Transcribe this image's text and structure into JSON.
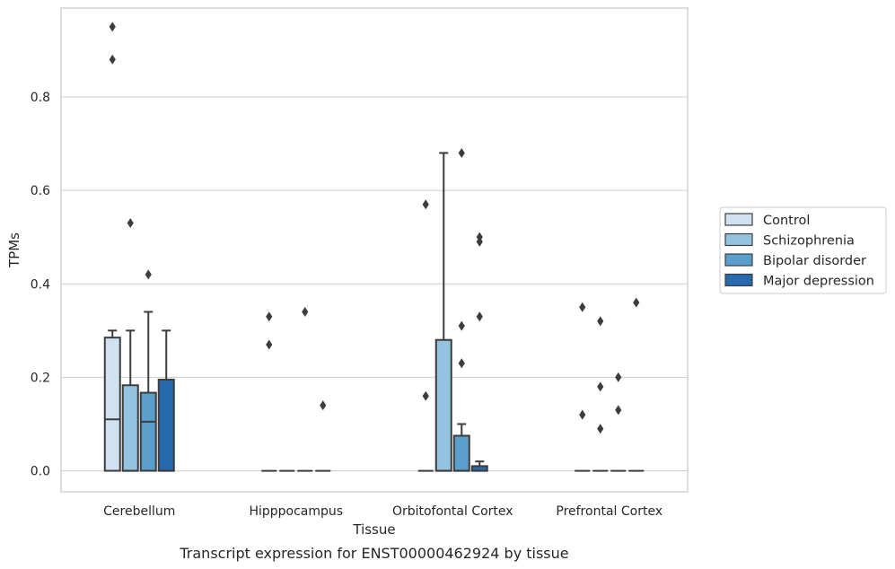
{
  "chart_data": {
    "type": "box",
    "title": "",
    "caption": "Transcript expression for ENST00000462924 by tissue",
    "xlabel": "Tissue",
    "ylabel": "TPMs",
    "ylim": [
      -0.045,
      0.99
    ],
    "yticks": [
      0.0,
      0.2,
      0.4,
      0.6,
      0.8
    ],
    "ytick_labels": [
      "0.0",
      "0.2",
      "0.4",
      "0.6",
      "0.8"
    ],
    "grid": "horizontal",
    "legend_position": "right",
    "categories": [
      "Cerebellum",
      "Hipppocampus",
      "Orbitofontal Cortex",
      "Prefrontal Cortex"
    ],
    "series": [
      {
        "name": "Control",
        "color": "#d0e1f1",
        "boxes": [
          {
            "q1": 0.0,
            "median": 0.11,
            "q3": 0.285,
            "whisker_low": 0.0,
            "whisker_high": 0.3,
            "outliers": [
              0.88,
              0.95
            ]
          },
          {
            "q1": 0.0,
            "median": 0.0,
            "q3": 0.0,
            "whisker_low": 0.0,
            "whisker_high": 0.0,
            "outliers": [
              0.27,
              0.33
            ]
          },
          {
            "q1": 0.0,
            "median": 0.0,
            "q3": 0.0,
            "whisker_low": 0.0,
            "whisker_high": 0.0,
            "outliers": [
              0.16,
              0.57
            ]
          },
          {
            "q1": 0.0,
            "median": 0.0,
            "q3": 0.0,
            "whisker_low": 0.0,
            "whisker_high": 0.0,
            "outliers": [
              0.12,
              0.35
            ]
          }
        ]
      },
      {
        "name": "Schizophrenia",
        "color": "#94c3df",
        "boxes": [
          {
            "q1": 0.0,
            "median": 0.0,
            "q3": 0.183,
            "whisker_low": 0.0,
            "whisker_high": 0.3,
            "outliers": [
              0.53
            ]
          },
          {
            "q1": 0.0,
            "median": 0.0,
            "q3": 0.0,
            "whisker_low": 0.0,
            "whisker_high": 0.0,
            "outliers": []
          },
          {
            "q1": 0.0,
            "median": 0.0,
            "q3": 0.28,
            "whisker_low": 0.0,
            "whisker_high": 0.68,
            "outliers": []
          },
          {
            "q1": 0.0,
            "median": 0.0,
            "q3": 0.0,
            "whisker_low": 0.0,
            "whisker_high": 0.0,
            "outliers": [
              0.09,
              0.18,
              0.32
            ]
          }
        ]
      },
      {
        "name": "Bipolar disorder",
        "color": "#5a9ecb",
        "boxes": [
          {
            "q1": 0.0,
            "median": 0.105,
            "q3": 0.167,
            "whisker_low": 0.0,
            "whisker_high": 0.34,
            "outliers": [
              0.42
            ]
          },
          {
            "q1": 0.0,
            "median": 0.0,
            "q3": 0.0,
            "whisker_low": 0.0,
            "whisker_high": 0.0,
            "outliers": [
              0.34
            ]
          },
          {
            "q1": 0.0,
            "median": 0.0,
            "q3": 0.075,
            "whisker_low": 0.0,
            "whisker_high": 0.1,
            "outliers": [
              0.23,
              0.31,
              0.68
            ]
          },
          {
            "q1": 0.0,
            "median": 0.0,
            "q3": 0.0,
            "whisker_low": 0.0,
            "whisker_high": 0.0,
            "outliers": [
              0.13,
              0.2
            ]
          }
        ]
      },
      {
        "name": "Major depression",
        "color": "#2669ad",
        "boxes": [
          {
            "q1": 0.0,
            "median": 0.0,
            "q3": 0.195,
            "whisker_low": 0.0,
            "whisker_high": 0.3,
            "outliers": []
          },
          {
            "q1": 0.0,
            "median": 0.0,
            "q3": 0.0,
            "whisker_low": 0.0,
            "whisker_high": 0.0,
            "outliers": [
              0.14
            ]
          },
          {
            "q1": 0.0,
            "median": 0.0,
            "q3": 0.01,
            "whisker_low": 0.0,
            "whisker_high": 0.02,
            "outliers": [
              0.33,
              0.49,
              0.5
            ]
          },
          {
            "q1": 0.0,
            "median": 0.0,
            "q3": 0.0,
            "whisker_low": 0.0,
            "whisker_high": 0.0,
            "outliers": [
              0.36
            ]
          }
        ]
      }
    ]
  }
}
